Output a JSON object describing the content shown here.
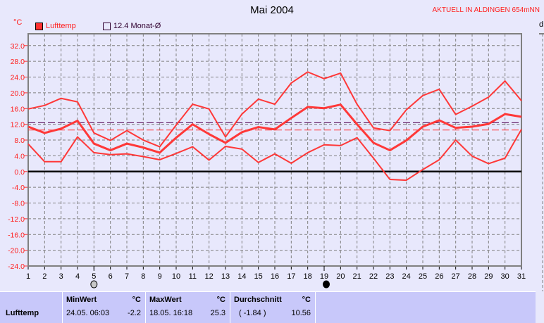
{
  "header": {
    "title": "Mai 2004",
    "station": "AKTUELL IN ALDINGEN 654mNN",
    "unit": "°C",
    "right_label": "d"
  },
  "legend": [
    {
      "label": "Lufttemp",
      "color": "#ff3030"
    },
    {
      "label": "12.4 Monat-Ø",
      "color": "#400040"
    }
  ],
  "colors": {
    "series": "#ff3838",
    "monthly_avg": "#500050",
    "avg": "#ff3838",
    "grid": "#808080",
    "zero": "#000000"
  },
  "chart_data": {
    "type": "line",
    "title": "Mai 2004",
    "ylabel": "°C",
    "x": [
      1,
      2,
      3,
      4,
      5,
      6,
      7,
      8,
      9,
      10,
      11,
      12,
      13,
      14,
      15,
      16,
      17,
      18,
      19,
      20,
      21,
      22,
      23,
      24,
      25,
      26,
      27,
      28,
      29,
      30,
      31
    ],
    "ylim": [
      -24,
      35
    ],
    "yticks": [
      "32.0",
      "28.0",
      "24.0",
      "20.0",
      "16.0",
      "12.0",
      "8.0",
      "4.0",
      "0.0",
      "-4.0",
      "-8.0",
      "-12.0",
      "-16.0",
      "-20.0",
      "-24.0"
    ],
    "grid": true,
    "series": [
      {
        "role": "max",
        "values": [
          15.9,
          16.8,
          18.6,
          17.7,
          9.8,
          7.9,
          10.4,
          8.0,
          6.3,
          11.8,
          17.1,
          15.9,
          8.8,
          14.6,
          18.4,
          17.1,
          22.5,
          25.3,
          23.6,
          25.0,
          17.1,
          11.1,
          10.4,
          15.7,
          19.3,
          20.9,
          14.5,
          16.6,
          18.9,
          23.0,
          18.0
        ]
      },
      {
        "role": "mean",
        "values": [
          11.4,
          9.8,
          10.9,
          12.9,
          7.1,
          5.4,
          7.1,
          6.1,
          4.8,
          8.6,
          12.0,
          9.5,
          7.3,
          10.0,
          11.3,
          10.7,
          13.6,
          16.4,
          16.1,
          17.0,
          12.0,
          7.3,
          5.4,
          7.9,
          11.4,
          13.0,
          11.1,
          11.4,
          12.1,
          14.6,
          13.9
        ]
      },
      {
        "role": "min",
        "values": [
          7.0,
          2.5,
          2.5,
          8.8,
          4.8,
          4.3,
          4.5,
          3.8,
          3.0,
          4.6,
          6.3,
          2.9,
          6.4,
          5.7,
          2.3,
          4.5,
          2.1,
          4.8,
          6.8,
          6.6,
          8.6,
          3.4,
          -2.0,
          -2.2,
          0.5,
          3.0,
          8.0,
          3.9,
          2.0,
          3.4,
          10.7
        ]
      }
    ],
    "reference_lines": [
      {
        "name": "12.4 Monat-Ø",
        "value": 12.4
      },
      {
        "name": "Durchschnitt",
        "value": 10.56
      }
    ],
    "moon_phases": [
      {
        "day": 5,
        "phase": "full-moon"
      },
      {
        "day": 19,
        "phase": "new-moon"
      }
    ]
  },
  "table": {
    "row_label": "Lufttemp",
    "min": {
      "header": "MinWert",
      "unit": "°C",
      "time": "24.05.  06:03",
      "value": "-2.2"
    },
    "max": {
      "header": "MaxWert",
      "unit": "°C",
      "time": "18.05.  16:18",
      "value": "25.3"
    },
    "avg": {
      "header": "Durchschnitt",
      "unit": "°C",
      "dev": "( -1.84 )",
      "value": "10.56"
    }
  }
}
